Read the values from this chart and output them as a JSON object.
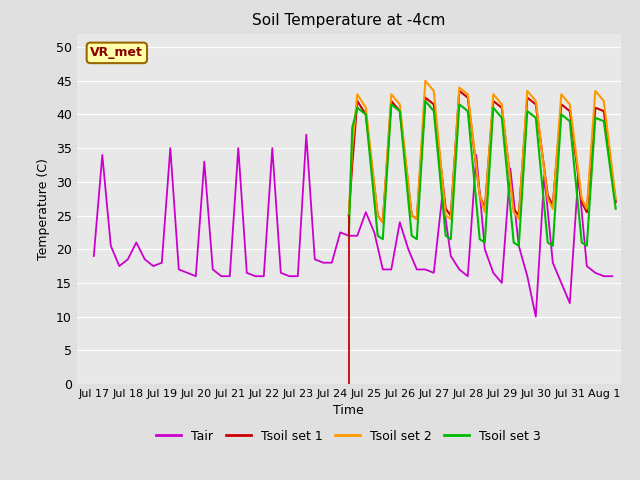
{
  "title": "Soil Temperature at -4cm",
  "xlabel": "Time",
  "ylabel": "Temperature (C)",
  "ylim": [
    0,
    52
  ],
  "yticks": [
    0,
    5,
    10,
    15,
    20,
    25,
    30,
    35,
    40,
    45,
    50
  ],
  "xtick_labels": [
    "Jul 17",
    "Jul 18",
    "Jul 19",
    "Jul 20",
    "Jul 21",
    "Jul 22",
    "Jul 23",
    "Jul 24",
    "Jul 25",
    "Jul 26",
    "Jul 27",
    "Jul 28",
    "Jul 29",
    "Jul 30",
    "Jul 31",
    "Aug 1"
  ],
  "xtick_positions": [
    0,
    1,
    2,
    3,
    4,
    5,
    6,
    7,
    8,
    9,
    10,
    11,
    12,
    13,
    14,
    15
  ],
  "xlim": [
    -0.5,
    15.5
  ],
  "vline_x": 7.5,
  "vline_color": "#cc0000",
  "fig_bg_color": "#e0e0e0",
  "plot_bg_color": "#e8e8e8",
  "grid_color": "#ffffff",
  "annotation_text": "VR_met",
  "annotation_facecolor": "#ffffaa",
  "annotation_edgecolor": "#996600",
  "annotation_textcolor": "#880000",
  "colors": {
    "Tair": "#cc00cc",
    "Tsoil1": "#cc0000",
    "Tsoil2": "#ff9900",
    "Tsoil3": "#00bb00"
  },
  "legend_labels": [
    "Tair",
    "Tsoil set 1",
    "Tsoil set 2",
    "Tsoil set 3"
  ],
  "tair_x": [
    0.0,
    0.25,
    0.5,
    0.75,
    1.0,
    1.25,
    1.5,
    1.75,
    2.0,
    2.25,
    2.5,
    2.75,
    3.0,
    3.25,
    3.5,
    3.75,
    4.0,
    4.25,
    4.5,
    4.75,
    5.0,
    5.25,
    5.5,
    5.75,
    6.0,
    6.25,
    6.5,
    6.75,
    7.0,
    7.25,
    7.5,
    7.5,
    7.75,
    8.0,
    8.25,
    8.5,
    8.75,
    9.0,
    9.25,
    9.5,
    9.75,
    10.0,
    10.25,
    10.5,
    10.75,
    11.0,
    11.25,
    11.5,
    11.75,
    12.0,
    12.25,
    12.5,
    12.75,
    13.0,
    13.25,
    13.5,
    13.75,
    14.0,
    14.25,
    14.5,
    14.75,
    15.0,
    15.25
  ],
  "tair_y": [
    19.0,
    34.0,
    20.5,
    17.5,
    18.5,
    21.0,
    18.5,
    17.5,
    18.0,
    35.0,
    17.0,
    16.5,
    16.0,
    33.0,
    17.0,
    16.0,
    16.0,
    35.0,
    16.5,
    16.0,
    16.0,
    35.0,
    16.5,
    16.0,
    16.0,
    37.0,
    18.5,
    18.0,
    18.0,
    22.5,
    22.0,
    22.0,
    22.0,
    25.5,
    22.5,
    17.0,
    17.0,
    24.0,
    20.0,
    17.0,
    17.0,
    16.5,
    28.0,
    19.0,
    17.0,
    16.0,
    34.0,
    20.0,
    16.5,
    15.0,
    32.0,
    20.5,
    16.0,
    10.0,
    31.0,
    18.0,
    15.0,
    12.0,
    31.0,
    17.5,
    16.5,
    16.0,
    16.0
  ],
  "tsoil1_x": [
    7.5,
    7.6,
    7.75,
    8.0,
    8.35,
    8.5,
    8.75,
    9.0,
    9.35,
    9.5,
    9.75,
    10.0,
    10.35,
    10.5,
    10.75,
    11.0,
    11.35,
    11.5,
    11.75,
    12.0,
    12.35,
    12.5,
    12.75,
    13.0,
    13.35,
    13.5,
    13.75,
    14.0,
    14.35,
    14.5,
    14.75,
    15.0,
    15.35
  ],
  "tsoil1_y": [
    25.0,
    32.5,
    42.0,
    40.0,
    25.0,
    24.0,
    42.0,
    40.5,
    25.0,
    24.5,
    42.5,
    41.5,
    26.0,
    25.0,
    43.5,
    42.5,
    28.0,
    26.0,
    42.0,
    41.0,
    26.0,
    25.0,
    42.5,
    41.5,
    28.0,
    26.5,
    41.5,
    40.5,
    27.0,
    25.5,
    41.0,
    40.5,
    27.0
  ],
  "tsoil2_x": [
    7.5,
    7.6,
    7.75,
    8.0,
    8.35,
    8.5,
    8.75,
    9.0,
    9.35,
    9.5,
    9.75,
    10.0,
    10.35,
    10.5,
    10.75,
    11.0,
    11.35,
    11.5,
    11.75,
    12.0,
    12.35,
    12.5,
    12.75,
    13.0,
    13.35,
    13.5,
    13.75,
    14.0,
    14.35,
    14.5,
    14.75,
    15.0,
    15.35
  ],
  "tsoil2_y": [
    25.0,
    35.0,
    43.0,
    41.0,
    25.0,
    24.0,
    43.0,
    41.5,
    25.0,
    24.5,
    45.0,
    43.5,
    25.0,
    24.5,
    44.0,
    43.0,
    28.0,
    25.5,
    43.0,
    41.5,
    25.5,
    24.5,
    43.5,
    42.0,
    27.5,
    26.0,
    43.0,
    41.5,
    27.5,
    26.0,
    43.5,
    42.0,
    27.5
  ],
  "tsoil3_x": [
    7.5,
    7.6,
    7.75,
    8.0,
    8.35,
    8.5,
    8.75,
    9.0,
    9.35,
    9.5,
    9.75,
    10.0,
    10.35,
    10.5,
    10.75,
    11.0,
    11.35,
    11.5,
    11.75,
    12.0,
    12.35,
    12.5,
    12.75,
    13.0,
    13.35,
    13.5,
    13.75,
    14.0,
    14.35,
    14.5,
    14.75,
    15.0,
    15.35
  ],
  "tsoil3_y": [
    22.0,
    38.0,
    41.0,
    40.0,
    22.0,
    21.5,
    41.5,
    40.5,
    22.0,
    21.5,
    42.0,
    40.5,
    22.0,
    21.5,
    41.5,
    40.5,
    21.5,
    21.0,
    41.0,
    39.5,
    21.0,
    20.5,
    40.5,
    39.5,
    21.0,
    20.5,
    40.0,
    39.0,
    21.0,
    20.5,
    39.5,
    39.0,
    26.0
  ]
}
